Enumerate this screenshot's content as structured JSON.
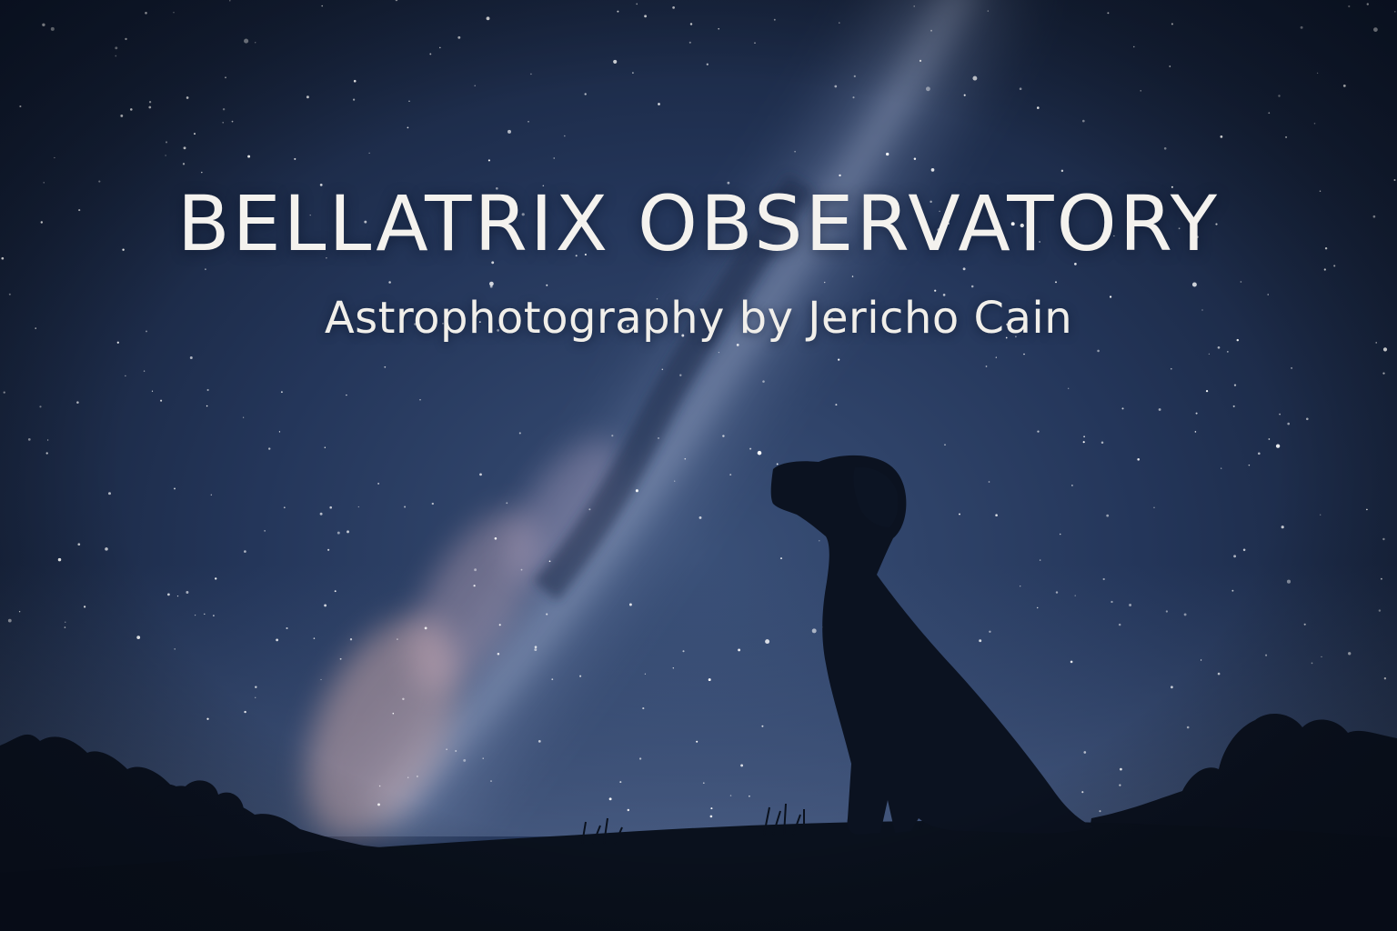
{
  "title": "BELLATRIX OBSERVATORY",
  "subtitle": "Astrophotography by Jericho Cain",
  "scene": {
    "sky_color": "#24365a",
    "milky_way_color": "#b9a4b4",
    "silhouette_color": "#0b1220",
    "subject": "dog-silhouette",
    "star_count": 420
  }
}
